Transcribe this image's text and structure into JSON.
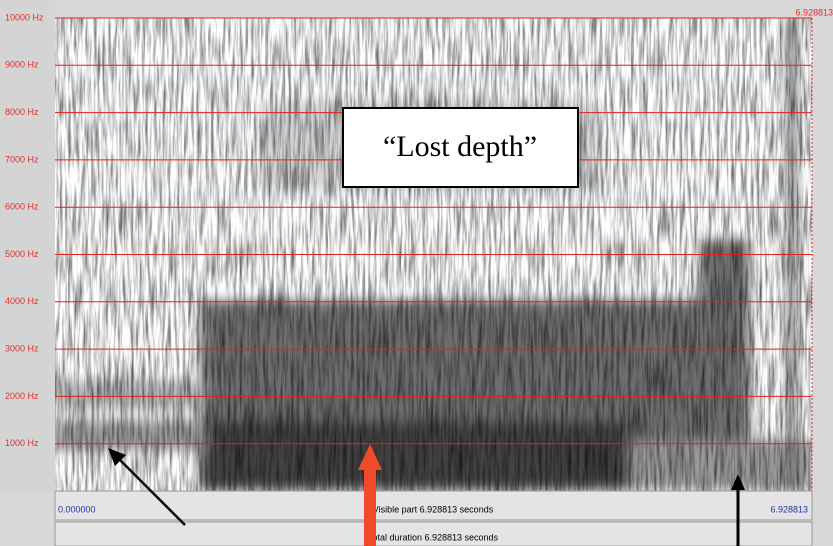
{
  "frequency_axis": {
    "ylim": [
      0,
      10000
    ],
    "ticks": [
      {
        "value": 1000,
        "label": "1000 Hz"
      },
      {
        "value": 2000,
        "label": "2000 Hz"
      },
      {
        "value": 3000,
        "label": "3000 Hz"
      },
      {
        "value": 4000,
        "label": "4000 Hz"
      },
      {
        "value": 5000,
        "label": "5000 Hz"
      },
      {
        "value": 6000,
        "label": "6000 Hz"
      },
      {
        "value": 7000,
        "label": "7000 Hz"
      },
      {
        "value": 8000,
        "label": "8000 Hz"
      },
      {
        "value": 9000,
        "label": "9000 Hz"
      },
      {
        "value": 10000,
        "label": "10000 Hz"
      }
    ]
  },
  "cursor_time": "6.928813",
  "visible_start": "0.000000",
  "visible_label": "Visible part 6.928813 seconds",
  "visible_end": "6.928813",
  "total_label": "Total duration 6.928813 seconds",
  "annotation": "“Lost depth”"
}
